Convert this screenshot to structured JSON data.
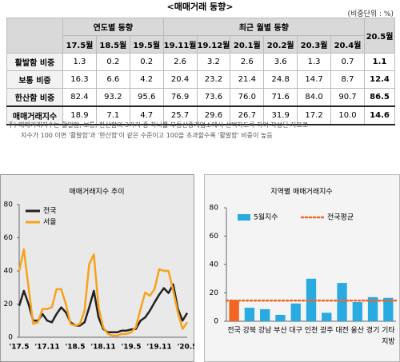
{
  "header": {
    "title": "<매매거래 동향>",
    "unit": "(비중단위 : %)"
  },
  "table": {
    "groups": [
      {
        "label": "연도별 동향",
        "columns": [
          "17.5월",
          "18.5월",
          "19.5월"
        ]
      },
      {
        "label": "최근 월별 동향",
        "columns": [
          "19.11월",
          "19.12월",
          "20.1월",
          "20.2월",
          "20.3월",
          "20.4월"
        ]
      }
    ],
    "last_column": "20.5월",
    "rows": [
      {
        "label": "활발함 비중",
        "values": [
          "1.3",
          "0.2",
          "0.2",
          "2.6",
          "3.2",
          "2.6",
          "3.6",
          "1.3",
          "0.7",
          "1.1"
        ]
      },
      {
        "label": "보통 비중",
        "values": [
          "16.3",
          "6.6",
          "4.2",
          "20.4",
          "23.2",
          "21.4",
          "24.8",
          "14.7",
          "8.7",
          "12.4"
        ]
      },
      {
        "label": "한산함 비중",
        "values": [
          "82.4",
          "93.2",
          "95.6",
          "76.9",
          "73.6",
          "76.0",
          "71.6",
          "84.0",
          "90.7",
          "86.5"
        ]
      },
      {
        "label": "매매거래지수",
        "values": [
          "18.9",
          "7.1",
          "4.7",
          "25.7",
          "29.6",
          "26.7",
          "31.9",
          "17.2",
          "10.0",
          "14.6"
        ]
      }
    ]
  },
  "note": [
    "주)  매매거래지수는 활발함, 보통, 한산함의 3가지 중 하나를 부동산중개업소에서 선택하도록 하여 작성된 지표로",
    "지수가 100 이면 '활발함'과 '한산함'이 같은 수준이고 100을 초과할수록 '활발함' 비중이 높음"
  ],
  "chart_data": [
    {
      "type": "line",
      "title": "매매거래지수 추이",
      "categories": [
        "'17.5",
        null,
        null,
        null,
        null,
        null,
        "'17.11",
        null,
        null,
        null,
        null,
        null,
        "'18.5",
        null,
        null,
        null,
        null,
        null,
        "'18.11",
        null,
        null,
        null,
        null,
        null,
        "'19.5",
        null,
        null,
        null,
        null,
        null,
        "'19.11",
        null,
        null,
        null,
        null,
        null,
        "'20.5"
      ],
      "series": [
        {
          "name": "전국",
          "color": "#222222",
          "values": [
            18.9,
            28,
            20,
            10,
            10,
            14,
            10,
            9,
            14,
            18,
            15,
            9,
            7.1,
            7,
            9,
            18,
            28,
            12,
            5,
            3,
            3,
            3,
            4,
            4,
            4.7,
            5,
            10,
            12,
            16,
            21,
            25.7,
            29.6,
            26.7,
            31.9,
            17.2,
            10.0,
            14.6
          ]
        },
        {
          "name": "서울",
          "color": "#f7a21b",
          "values": [
            40,
            53,
            30,
            8,
            9,
            17,
            17,
            18,
            29,
            29,
            20,
            8,
            7,
            8,
            16,
            44,
            50,
            18,
            6,
            2,
            1,
            1,
            2,
            2,
            3,
            6,
            17,
            27,
            25,
            29,
            41,
            40,
            40,
            28,
            15,
            5,
            9
          ]
        }
      ],
      "ylim": [
        0,
        80
      ],
      "yticks": [
        0,
        20,
        40,
        60,
        80
      ],
      "legend": "top-left"
    },
    {
      "type": "bar",
      "title": "지역별 매매거래지수",
      "categories": [
        "전국",
        "강북",
        "강남",
        "부산",
        "대구",
        "인천",
        "광주",
        "대전",
        "울산",
        "경기",
        "기타지방"
      ],
      "series": [
        {
          "name": "5월지수",
          "color": "#29abe2",
          "colors": [
            "#f26522",
            "#29abe2",
            "#29abe2",
            "#29abe2",
            "#29abe2",
            "#29abe2",
            "#29abe2",
            "#29abe2",
            "#29abe2",
            "#29abe2",
            "#29abe2"
          ],
          "values": [
            14.6,
            9.5,
            8.5,
            4.5,
            12.5,
            30,
            6,
            27,
            13.5,
            17,
            16.5
          ]
        }
      ],
      "reference_line": {
        "name": "전국평균",
        "value": 14.6,
        "color": "#f26522"
      },
      "ylim": [
        0,
        80
      ],
      "yticks": [
        0,
        20,
        40,
        60,
        80
      ],
      "legend": "top"
    }
  ]
}
